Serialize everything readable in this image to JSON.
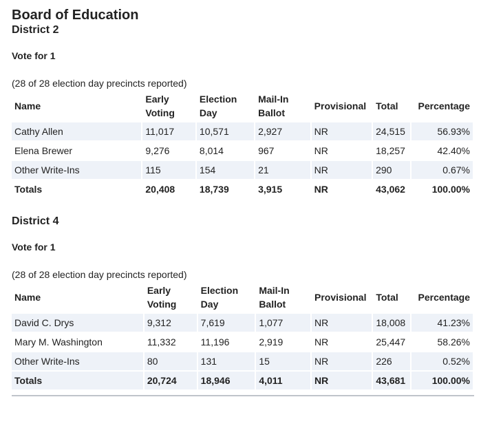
{
  "page": {
    "title": "Board of Education",
    "columns": {
      "name": "Name",
      "early_1": "Early",
      "early_2": "Voting",
      "eday_1": "Election",
      "eday_2": "Day",
      "mail_1": "Mail-In",
      "mail_2": "Ballot",
      "provisional": "Provisional",
      "total": "Total",
      "percentage": "Percentage"
    }
  },
  "districts": [
    {
      "title": "District 2",
      "vote_for": "Vote for 1",
      "precincts": "(28 of 28 election day precincts reported)",
      "rows": [
        {
          "name": "Cathy Allen",
          "early": "11,017",
          "eday": "10,571",
          "mail": "2,927",
          "prov": "NR",
          "total": "24,515",
          "pct": "56.93%"
        },
        {
          "name": "Elena Brewer",
          "early": "9,276",
          "eday": "8,014",
          "mail": "967",
          "prov": "NR",
          "total": "18,257",
          "pct": "42.40%"
        },
        {
          "name": "Other Write-Ins",
          "early": "115",
          "eday": "154",
          "mail": "21",
          "prov": "NR",
          "total": "290",
          "pct": "0.67%"
        },
        {
          "name": "Totals",
          "early": "20,408",
          "eday": "18,739",
          "mail": "3,915",
          "prov": "NR",
          "total": "43,062",
          "pct": "100.00%"
        }
      ]
    },
    {
      "title": "District 4",
      "vote_for": "Vote for 1",
      "precincts": "(28 of 28 election day precincts reported)",
      "rows": [
        {
          "name": "David C. Drys",
          "early": "9,312",
          "eday": "7,619",
          "mail": "1,077",
          "prov": "NR",
          "total": "18,008",
          "pct": "41.23%"
        },
        {
          "name": "Mary M. Washington",
          "early": "11,332",
          "eday": "11,196",
          "mail": "2,919",
          "prov": "NR",
          "total": "25,447",
          "pct": "58.26%"
        },
        {
          "name": "Other Write-Ins",
          "early": "80",
          "eday": "131",
          "mail": "15",
          "prov": "NR",
          "total": "226",
          "pct": "0.52%"
        },
        {
          "name": "Totals",
          "early": "20,724",
          "eday": "18,946",
          "mail": "4,011",
          "prov": "NR",
          "total": "43,681",
          "pct": "100.00%"
        }
      ]
    }
  ]
}
